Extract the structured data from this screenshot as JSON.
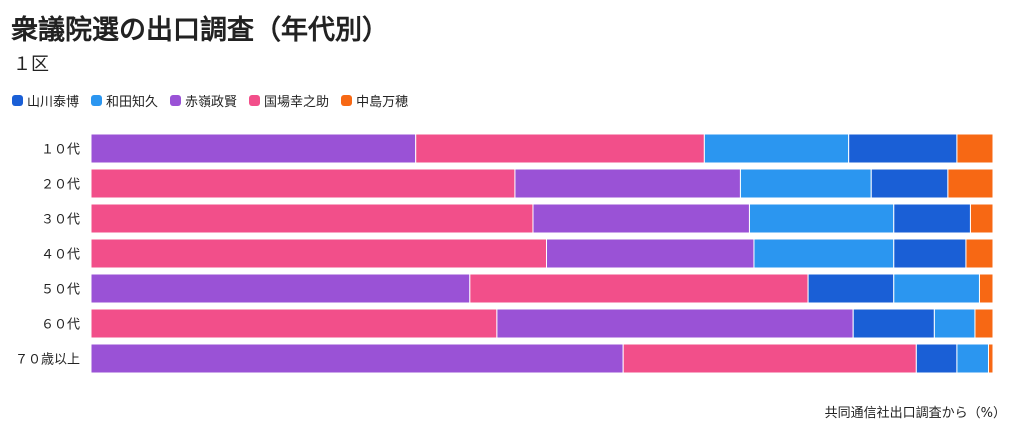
{
  "header": {
    "title": "衆議院選の出口調査（年代別）",
    "subtitle": "１区"
  },
  "footer": {
    "source": "共同通信社出口調査から（%）"
  },
  "chart_data": {
    "type": "bar",
    "orientation": "horizontal",
    "stacked": true,
    "normalized": true,
    "categories": [
      "１０代",
      "２０代",
      "３０代",
      "４０代",
      "５０代",
      "６０代",
      "７０歳以上"
    ],
    "series": [
      {
        "name": "山川泰博",
        "color": "#1a5fd6"
      },
      {
        "name": "和田知久",
        "color": "#2b96f0"
      },
      {
        "name": "赤嶺政賢",
        "color": "#9a52d6"
      },
      {
        "name": "国場幸之助",
        "color": "#f24f8a"
      },
      {
        "name": "中島万穂",
        "color": "#f76814"
      }
    ],
    "rows": [
      {
        "category": "１０代",
        "segments": [
          {
            "series": "赤嶺政賢",
            "value": 36.0
          },
          {
            "series": "国場幸之助",
            "value": 32.0
          },
          {
            "series": "和田知久",
            "value": 16.0
          },
          {
            "series": "山川泰博",
            "value": 12.0
          },
          {
            "series": "中島万穂",
            "value": 4.0
          }
        ]
      },
      {
        "category": "２０代",
        "segments": [
          {
            "series": "国場幸之助",
            "value": 47.0
          },
          {
            "series": "赤嶺政賢",
            "value": 25.0
          },
          {
            "series": "和田知久",
            "value": 14.5
          },
          {
            "series": "山川泰博",
            "value": 8.5
          },
          {
            "series": "中島万穂",
            "value": 5.0
          }
        ]
      },
      {
        "category": "３０代",
        "segments": [
          {
            "series": "国場幸之助",
            "value": 49.0
          },
          {
            "series": "赤嶺政賢",
            "value": 24.0
          },
          {
            "series": "和田知久",
            "value": 16.0
          },
          {
            "series": "山川泰博",
            "value": 8.5
          },
          {
            "series": "中島万穂",
            "value": 2.5
          }
        ]
      },
      {
        "category": "４０代",
        "segments": [
          {
            "series": "国場幸之助",
            "value": 50.5
          },
          {
            "series": "赤嶺政賢",
            "value": 23.0
          },
          {
            "series": "和田知久",
            "value": 15.5
          },
          {
            "series": "山川泰博",
            "value": 8.0
          },
          {
            "series": "中島万穂",
            "value": 3.0
          }
        ]
      },
      {
        "category": "５０代",
        "segments": [
          {
            "series": "赤嶺政賢",
            "value": 42.0
          },
          {
            "series": "国場幸之助",
            "value": 37.5
          },
          {
            "series": "山川泰博",
            "value": 9.5
          },
          {
            "series": "和田知久",
            "value": 9.5
          },
          {
            "series": "中島万穂",
            "value": 1.5
          }
        ]
      },
      {
        "category": "６０代",
        "segments": [
          {
            "series": "国場幸之助",
            "value": 45.0
          },
          {
            "series": "赤嶺政賢",
            "value": 39.5
          },
          {
            "series": "山川泰博",
            "value": 9.0
          },
          {
            "series": "和田知久",
            "value": 4.5
          },
          {
            "series": "中島万穂",
            "value": 2.0
          }
        ]
      },
      {
        "category": "７０歳以上",
        "segments": [
          {
            "series": "赤嶺政賢",
            "value": 59.0
          },
          {
            "series": "国場幸之助",
            "value": 32.5
          },
          {
            "series": "山川泰博",
            "value": 4.5
          },
          {
            "series": "和田知久",
            "value": 3.5
          },
          {
            "series": "中島万穂",
            "value": 0.5
          }
        ]
      }
    ],
    "xlim": [
      0,
      100
    ],
    "grid": false,
    "legend_position": "top-left"
  }
}
